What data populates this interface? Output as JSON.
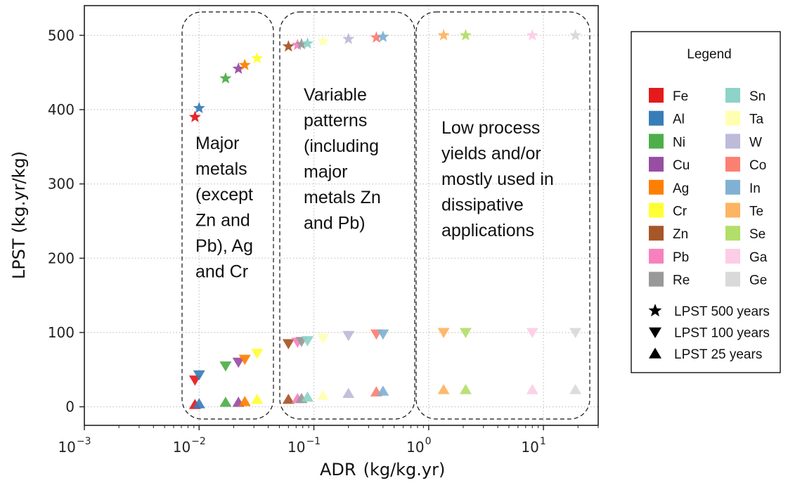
{
  "chart_data": {
    "type": "scatter",
    "xlabel": "ADR",
    "xlabel_unit": "(kg/kg.yr)",
    "ylabel": "LPST (kg.yr/kg)",
    "xscale": "log",
    "xlim": [
      0.001,
      30
    ],
    "ylim": [
      -25,
      540
    ],
    "grid": true,
    "x_ticks": [
      {
        "value": 0.001,
        "base": "10",
        "exp": "−3"
      },
      {
        "value": 0.01,
        "base": "10",
        "exp": "−2"
      },
      {
        "value": 0.1,
        "base": "10",
        "exp": "−1"
      },
      {
        "value": 1,
        "base": "10",
        "exp": "0"
      },
      {
        "value": 10,
        "base": "10",
        "exp": "1"
      }
    ],
    "y_ticks": [
      0,
      100,
      200,
      300,
      400,
      500
    ],
    "annotations": [
      {
        "lines": [
          "Major",
          "metals",
          "(except",
          "Zn and",
          "Pb), Ag",
          "and Cr"
        ]
      },
      {
        "lines": [
          "Variable",
          "patterns",
          "(including",
          "major",
          "metals Zn",
          "and Pb)"
        ]
      },
      {
        "lines": [
          "Low process",
          "yields and/or",
          "mostly used in",
          "dissipative",
          "applications"
        ]
      }
    ],
    "markers": {
      "500": "star",
      "100": "triangle-down",
      "25": "triangle-up"
    },
    "series": [
      {
        "name": "Fe",
        "color": "#e41a1c",
        "x": 0.0092,
        "y": [
          390,
          36,
          3
        ]
      },
      {
        "name": "Al",
        "color": "#377eb8",
        "x": 0.01,
        "y": [
          402,
          43,
          4
        ]
      },
      {
        "name": "Ni",
        "color": "#4daf4a",
        "x": 0.017,
        "y": [
          442,
          55,
          6
        ]
      },
      {
        "name": "Cu",
        "color": "#984ea3",
        "x": 0.022,
        "y": [
          455,
          60,
          6
        ]
      },
      {
        "name": "Ag",
        "color": "#ff7f00",
        "x": 0.025,
        "y": [
          460,
          64,
          7
        ]
      },
      {
        "name": "Cr",
        "color": "#ffff33",
        "x": 0.032,
        "y": [
          469,
          72,
          10
        ]
      },
      {
        "name": "Zn",
        "color": "#a65628",
        "x": 0.06,
        "y": [
          485,
          85,
          10
        ]
      },
      {
        "name": "Pb",
        "color": "#f781bf",
        "x": 0.072,
        "y": [
          487,
          87,
          11
        ]
      },
      {
        "name": "Re",
        "color": "#999999",
        "x": 0.078,
        "y": [
          488,
          88,
          11
        ]
      },
      {
        "name": "Sn",
        "color": "#8dd3c7",
        "x": 0.088,
        "y": [
          489,
          89,
          13
        ]
      },
      {
        "name": "Ta",
        "color": "#ffffb3",
        "x": 0.12,
        "y": [
          492,
          92,
          15
        ]
      },
      {
        "name": "W",
        "color": "#bebada",
        "x": 0.2,
        "y": [
          495,
          96,
          18
        ]
      },
      {
        "name": "Co",
        "color": "#fb8072",
        "x": 0.35,
        "y": [
          497,
          98,
          20
        ]
      },
      {
        "name": "In",
        "color": "#80b1d3",
        "x": 0.4,
        "y": [
          498,
          98,
          21
        ]
      },
      {
        "name": "Te",
        "color": "#fdb462",
        "x": 1.35,
        "y": [
          500,
          100,
          23
        ]
      },
      {
        "name": "Se",
        "color": "#b3de69",
        "x": 2.1,
        "y": [
          500,
          100,
          23
        ]
      },
      {
        "name": "Ga",
        "color": "#fccde5",
        "x": 8.0,
        "y": [
          500,
          100,
          23
        ]
      },
      {
        "name": "Ge",
        "color": "#d9d9d9",
        "x": 19.0,
        "y": [
          500,
          100,
          23
        ]
      }
    ],
    "legend": {
      "title": "Legend",
      "placement": "right",
      "marker_entries": [
        {
          "shape": "star",
          "label": "LPST 500 years"
        },
        {
          "shape": "triangle-down",
          "label": "LPST 100 years"
        },
        {
          "shape": "triangle-up",
          "label": "LPST 25 years"
        }
      ]
    }
  }
}
